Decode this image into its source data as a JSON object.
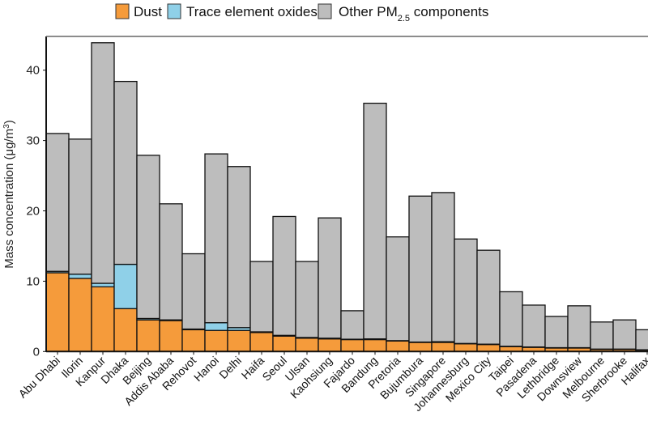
{
  "chart_data": {
    "type": "bar",
    "stacked": true,
    "ylabel": "Mass concentration (μg/m³)",
    "ylabel_parts": {
      "main": "Mass concentration (μg/m",
      "sup": "3",
      "end": ")"
    },
    "ylim": [
      0,
      45
    ],
    "yticks": [
      "0",
      "10",
      "20",
      "30",
      "40"
    ],
    "grid": false,
    "legend_placement": "top",
    "categories": [
      "Abu Dhabi",
      "Ilorin",
      "Kanpur",
      "Dhaka",
      "Beijing",
      "Addis Ababa",
      "Rehovot",
      "Hanoi",
      "Delhi",
      "Haifa",
      "Seoul",
      "Ulsan",
      "Kaohsiung",
      "Fajardo",
      "Bandung",
      "Pretoria",
      "Bujumbura",
      "Singapore",
      "Johannesburg",
      "Mexico City",
      "Taipei",
      "Pasadena",
      "Lethbridge",
      "Downsview",
      "Melbourne",
      "Sherbrooke",
      "Halifax"
    ],
    "series": [
      {
        "name": "Dust",
        "color": "#f59b3b",
        "values": [
          11.2,
          10.4,
          9.2,
          6.1,
          4.5,
          4.4,
          3.1,
          3.0,
          3.0,
          2.7,
          2.2,
          1.9,
          1.8,
          1.7,
          1.7,
          1.5,
          1.3,
          1.3,
          1.1,
          1.0,
          0.7,
          0.6,
          0.5,
          0.5,
          0.3,
          0.3,
          0.2
        ]
      },
      {
        "name": "Trace element oxides",
        "color": "#8fd0e8",
        "values": [
          0.2,
          0.6,
          0.5,
          6.3,
          0.2,
          0.1,
          0.1,
          1.1,
          0.4,
          0.1,
          0.1,
          0.1,
          0.1,
          0.05,
          0.1,
          0.05,
          0.05,
          0.1,
          0.05,
          0.05,
          0.05,
          0.05,
          0.05,
          0.05,
          0.05,
          0.05,
          0.05
        ]
      },
      {
        "name": "Other PM2.5 components",
        "name_parts": {
          "main": "Other PM",
          "sub": "2.5",
          "end": " components"
        },
        "color": "#bdbdbd",
        "values": [
          19.6,
          19.2,
          34.2,
          26.0,
          23.2,
          16.5,
          10.7,
          24.0,
          22.9,
          10.0,
          16.9,
          10.8,
          17.1,
          4.05,
          33.5,
          14.75,
          20.75,
          21.2,
          14.85,
          13.35,
          7.75,
          5.95,
          4.45,
          5.95,
          3.85,
          4.15,
          2.85
        ]
      }
    ]
  }
}
